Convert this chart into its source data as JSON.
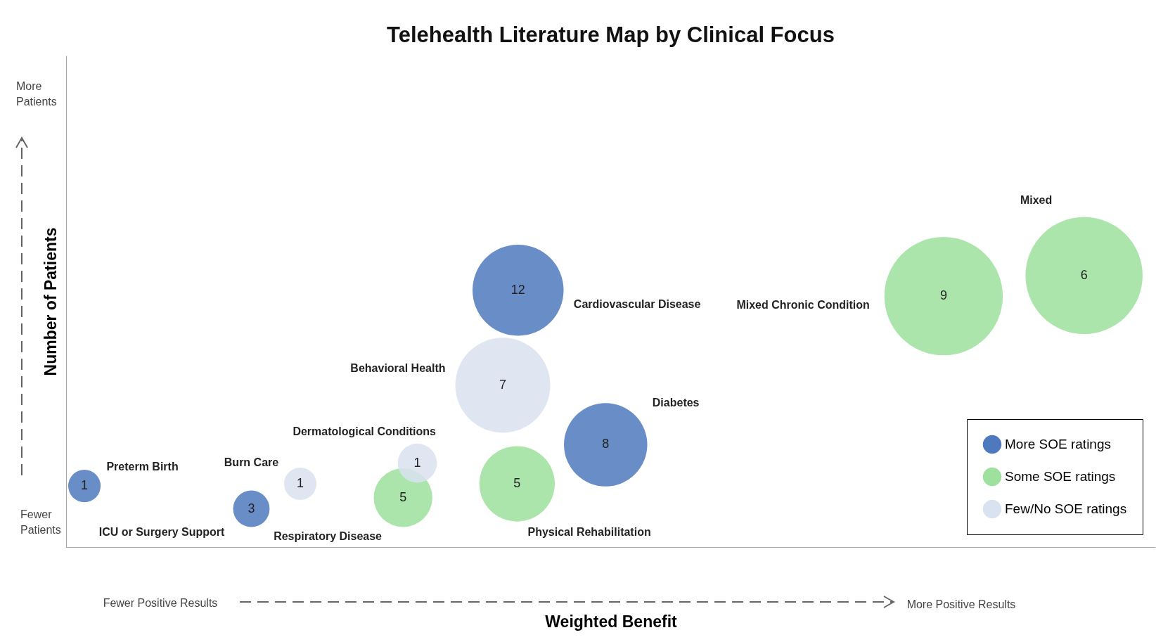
{
  "chart_data": {
    "type": "other",
    "title": "Telehealth Literature Map by Clinical Focus",
    "xlabel": "Weighted Benefit",
    "ylabel": "Number of Patients",
    "legend": "bottom right",
    "data_labels": true,
    "categories": [
      "Preterm Birth",
      "ICU or Surgery Support",
      "Burn Care",
      "Respiratory Disease",
      "Dermatological Conditions",
      "Physical Rehabilitation",
      "Behavioral Health",
      "Cardiovascular Disease",
      "Diabetes",
      "Mixed Chronic Condition",
      "Mixed"
    ],
    "series": [
      {
        "name": "More SOE ratings",
        "color": "#4f79bd",
        "values": [
          1,
          3,
          null,
          null,
          null,
          null,
          null,
          12,
          8,
          null,
          null
        ]
      },
      {
        "name": "Some SOE ratings",
        "color": "#9ee09e",
        "values": [
          null,
          null,
          null,
          5,
          null,
          5,
          null,
          null,
          null,
          9,
          6
        ]
      },
      {
        "name": "Few/No SOE ratings",
        "color": "#d9e2f0",
        "values": [
          null,
          null,
          1,
          null,
          1,
          null,
          7,
          null,
          null,
          null,
          null
        ]
      }
    ],
    "annotations": [
      "More Patients",
      "Fewer Patients",
      "Fewer Positive Results",
      "More Positive Results"
    ]
  }
}
